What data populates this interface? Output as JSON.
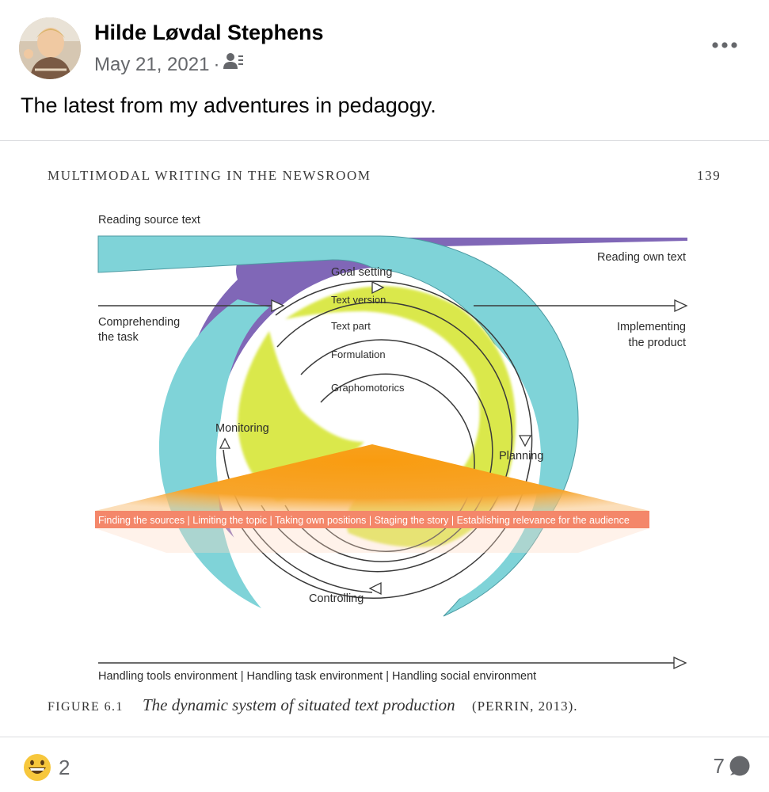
{
  "post": {
    "author": "Hilde Løvdal Stephens",
    "date": "May 21, 2021",
    "separator": "·",
    "audience_icon": "friends-audience-icon",
    "more_icon": "more-options-icon",
    "text": "The latest from my adventures in pedagogy."
  },
  "image": {
    "running_head": "MULTIMODAL WRITING IN THE NEWSROOM",
    "page_number": "139",
    "labels": {
      "reading_source": "Reading source text",
      "reading_own": "Reading own text",
      "goal_setting": "Goal setting",
      "text_version": "Text version",
      "text_part": "Text part",
      "formulation": "Formulation",
      "graphomotorics": "Graphomotorics",
      "comprehending_1": "Comprehending",
      "comprehending_2": "the task",
      "implementing_1": "Implementing",
      "implementing_2": "the product",
      "monitoring": "Monitoring",
      "planning": "Planning",
      "controlling": "Controlling",
      "band": "Finding the sources | Limiting the topic | Taking own positions | Staging the story | Establishing relevance for the audience",
      "environment": "Handling tools environment | Handling task environment | Handling social environment"
    },
    "caption": {
      "figure": "FIGURE 6.1",
      "title": "The dynamic system of situated text production",
      "cite": "(PERRIN, 2013)."
    },
    "colors": {
      "cyan": "#7fd3d8",
      "purple": "#8067b7",
      "yellow_green": "#d7e639",
      "orange": "#f7a11f",
      "band": "#f4876a"
    }
  },
  "footer": {
    "reaction_icon": "grinning-face-emoji-icon",
    "reaction_count": "2",
    "comment_count": "7",
    "comment_icon": "comment-bubble-icon"
  }
}
